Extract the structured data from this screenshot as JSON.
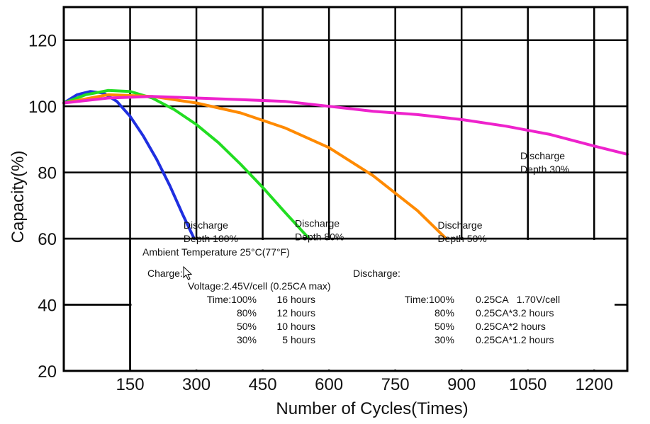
{
  "chart_data": {
    "type": "line",
    "xlabel": "Number of Cycles(Times)",
    "ylabel": "Capacity(%)",
    "xlim": [
      0,
      1275
    ],
    "ylim": [
      20,
      130
    ],
    "x_ticks": [
      150,
      300,
      450,
      600,
      750,
      900,
      1050,
      1200
    ],
    "y_ticks": [
      20,
      40,
      60,
      80,
      100,
      120
    ],
    "grid": true,
    "series": [
      {
        "name": "Discharge Depth 100%",
        "label_lines": [
          "Discharge",
          "Depth 100%"
        ],
        "label_pos": [
          303,
          63
        ],
        "color": "#1f2fe0",
        "x": [
          0,
          30,
          60,
          90,
          120,
          150,
          180,
          210,
          240,
          270,
          295
        ],
        "y": [
          101,
          103.5,
          104.5,
          104,
          101.5,
          97,
          91,
          84,
          76,
          67,
          60
        ]
      },
      {
        "name": "Discharge Depth 80%",
        "label_lines": [
          "Discharge",
          "Depth 80%"
        ],
        "label_pos": [
          555,
          63.5
        ],
        "color": "#22dd22",
        "x": [
          0,
          50,
          100,
          150,
          200,
          250,
          300,
          350,
          400,
          450,
          500,
          555
        ],
        "y": [
          101,
          103.5,
          104.8,
          104.5,
          102.5,
          99,
          94.5,
          89,
          82.5,
          75.5,
          68,
          60
        ]
      },
      {
        "name": "Discharge Depth 50%",
        "label_lines": [
          "Discharge",
          "Depth 50%"
        ],
        "label_pos": [
          878,
          63
        ],
        "color": "#ff8a00",
        "x": [
          0,
          100,
          200,
          300,
          400,
          500,
          600,
          700,
          800,
          865
        ],
        "y": [
          101,
          103.5,
          103,
          101,
          98,
          93.5,
          87.5,
          79,
          68.5,
          60
        ]
      },
      {
        "name": "Discharge Depth 30%",
        "label_lines": [
          "Discharge",
          "Depth 30%"
        ],
        "label_pos": [
          1065,
          84
        ],
        "color": "#ee22cc",
        "x": [
          0,
          100,
          200,
          300,
          400,
          500,
          600,
          700,
          800,
          900,
          1000,
          1100,
          1200,
          1275
        ],
        "y": [
          101,
          102.5,
          103,
          102.5,
          102,
          101.5,
          100,
          98.5,
          97.5,
          96,
          94,
          91.5,
          88,
          85.5
        ]
      }
    ],
    "annotations": {
      "ambient": "Ambient Temperature 25°C(77°F)",
      "charge_title": "Charge:",
      "charge_voltage": "Voltage:2.45V/cell (0.25CA max)",
      "charge_rows": [
        [
          "Time:100%",
          "16 hours"
        ],
        [
          "80%",
          "12 hours"
        ],
        [
          "50%",
          "10 hours"
        ],
        [
          "30%",
          "5 hours"
        ]
      ],
      "discharge_title": "Discharge:",
      "discharge_rows": [
        [
          "Time:100%",
          "0.25CA   1.70V/cell"
        ],
        [
          "80%",
          "0.25CA*3.2 hours"
        ],
        [
          "50%",
          "0.25CA*2 hours"
        ],
        [
          "30%",
          "0.25CA*1.2 hours"
        ]
      ]
    }
  },
  "cursor_icon": "mouse-pointer-icon"
}
